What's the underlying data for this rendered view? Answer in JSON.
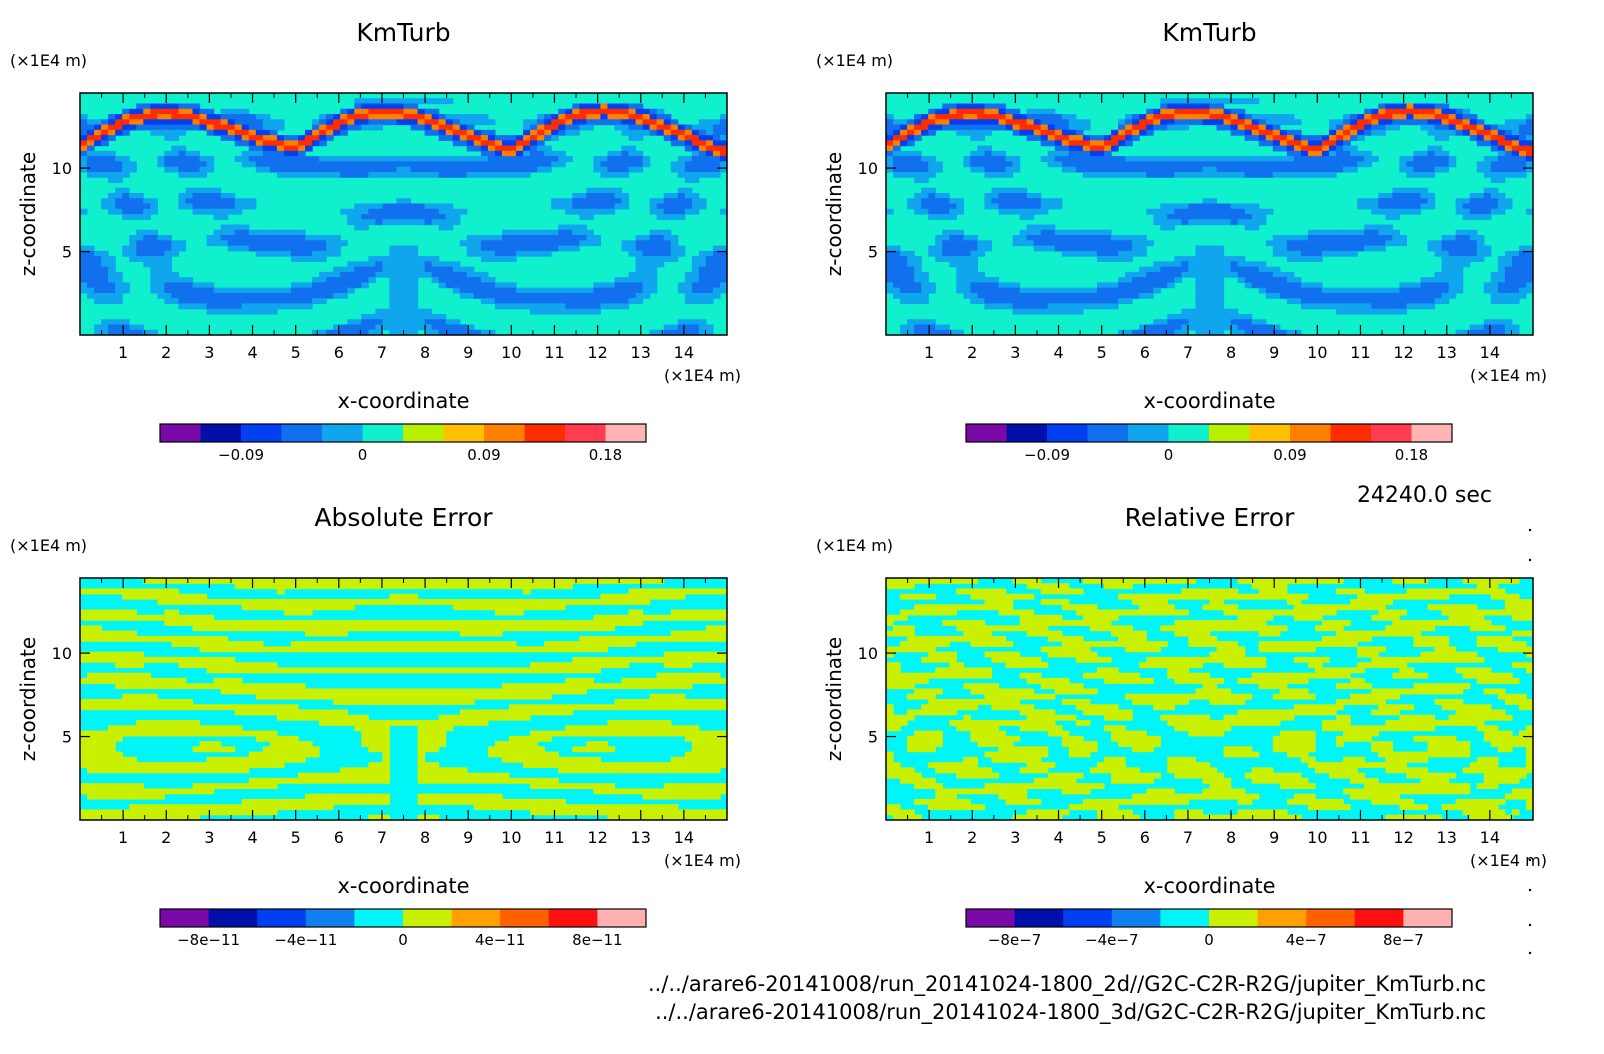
{
  "time_label": "24240.0 sec",
  "footer": {
    "file_2d": "../../arare6-20141008/run_20141024-1800_2d//G2C-C2R-R2G/jupiter_KmTurb.nc",
    "file_3d": "../../arare6-20141008/run_20141024-1800_3d/G2C-C2R-R2G/jupiter_KmTurb.nc"
  },
  "colors": {
    "km_palette": [
      "#7a0aa8",
      "#0010a8",
      "#0040f0",
      "#1070ee",
      "#10a6ee",
      "#10f0cc",
      "#b8f000",
      "#ffc000",
      "#ff8000",
      "#ff2c00",
      "#ff3c50",
      "#ffb4b4"
    ],
    "err_palette": [
      "#7a0aa8",
      "#0010a8",
      "#0040f0",
      "#1080f0",
      "#00f6f6",
      "#c8f000",
      "#ffa000",
      "#ff6000",
      "#ff1010",
      "#ffb0b0"
    ]
  },
  "chart_data": [
    {
      "type": "heatmap",
      "title": "KmTurb",
      "xlabel": "x-coordinate",
      "ylabel": "z-coordinate",
      "x_unit": "(×1E4 m)",
      "y_unit": "(×1E4 m)",
      "xlim": [
        0,
        15
      ],
      "ylim": [
        0,
        14.5
      ],
      "x_ticks": [
        "1",
        "2",
        "3",
        "4",
        "5",
        "6",
        "7",
        "8",
        "9",
        "10",
        "11",
        "12",
        "13",
        "14"
      ],
      "y_ticks": [
        "5",
        "10"
      ],
      "colorbar": {
        "ticks": [
          "−0.09",
          "0",
          "0.09",
          "0.18"
        ],
        "tick_values": [
          -0.09,
          0,
          0.09,
          0.18
        ],
        "range": [
          -0.15,
          0.21
        ],
        "bins": 12
      }
    },
    {
      "type": "heatmap",
      "title": "KmTurb",
      "xlabel": "x-coordinate",
      "ylabel": "z-coordinate",
      "x_unit": "(×1E4 m)",
      "y_unit": "(×1E4 m)",
      "xlim": [
        0,
        15
      ],
      "ylim": [
        0,
        14.5
      ],
      "x_ticks": [
        "1",
        "2",
        "3",
        "4",
        "5",
        "6",
        "7",
        "8",
        "9",
        "10",
        "11",
        "12",
        "13",
        "14"
      ],
      "y_ticks": [
        "5",
        "10"
      ],
      "colorbar": {
        "ticks": [
          "−0.09",
          "0",
          "0.09",
          "0.18"
        ],
        "tick_values": [
          -0.09,
          0,
          0.09,
          0.18
        ],
        "range": [
          -0.15,
          0.21
        ],
        "bins": 12
      }
    },
    {
      "type": "heatmap",
      "title": "Absolute Error",
      "xlabel": "x-coordinate",
      "ylabel": "z-coordinate",
      "x_unit": "(×1E4 m)",
      "y_unit": "(×1E4 m)",
      "xlim": [
        0,
        15
      ],
      "ylim": [
        0,
        14.5
      ],
      "x_ticks": [
        "1",
        "2",
        "3",
        "4",
        "5",
        "6",
        "7",
        "8",
        "9",
        "10",
        "11",
        "12",
        "13",
        "14"
      ],
      "y_ticks": [
        "5",
        "10"
      ],
      "colorbar": {
        "ticks": [
          "−8e−11",
          "−4e−11",
          "0",
          "4e−11",
          "8e−11"
        ],
        "tick_values": [
          -8e-11,
          -4e-11,
          0,
          4e-11,
          8e-11
        ],
        "range": [
          -1e-10,
          1e-10
        ],
        "bins": 10
      }
    },
    {
      "type": "heatmap",
      "title": "Relative Error",
      "xlabel": "x-coordinate",
      "ylabel": "z-coordinate",
      "x_unit": "(×1E4 m)",
      "y_unit": "(×1E4 m)",
      "xlim": [
        0,
        15
      ],
      "ylim": [
        0,
        14.5
      ],
      "x_ticks": [
        "1",
        "2",
        "3",
        "4",
        "5",
        "6",
        "7",
        "8",
        "9",
        "10",
        "11",
        "12",
        "13",
        "14"
      ],
      "y_ticks": [
        "5",
        "10"
      ],
      "colorbar": {
        "ticks": [
          "−8e−7",
          "−4e−7",
          "0",
          "4e−7",
          "8e−7"
        ],
        "tick_values": [
          -8e-07,
          -4e-07,
          0,
          4e-07,
          8e-07
        ],
        "range": [
          -1e-06,
          1e-06
        ],
        "bins": 10
      }
    }
  ]
}
